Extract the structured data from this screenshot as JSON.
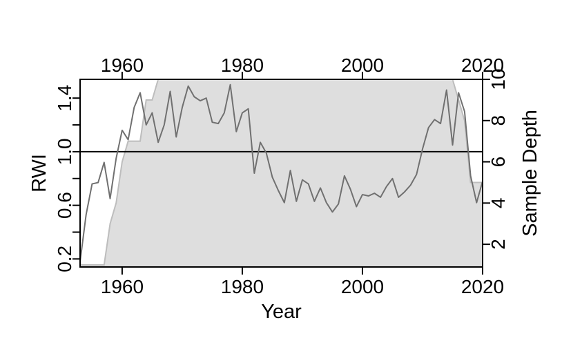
{
  "chart_data": {
    "type": "line",
    "xlabel": "Year",
    "ylabel": "RWI",
    "y2label": "Sample Depth",
    "xlim": [
      1953,
      2020
    ],
    "ylim": [
      0.14,
      1.54
    ],
    "y2lim": [
      0.9,
      10.0
    ],
    "x_ticks": [
      1960,
      1980,
      2000,
      2020
    ],
    "y_ticks": [
      0.2,
      0.6,
      1.0,
      1.4
    ],
    "y_minor_ticks": [
      0.4,
      0.8,
      1.2
    ],
    "y2_ticks": [
      2,
      4,
      6,
      8,
      10
    ],
    "reference_line": 1.0,
    "grid": false,
    "colors": {
      "rwi_line": "#707070",
      "depth_fill": "#dedede",
      "depth_edge": "#bdbdbd",
      "reference": "#000000"
    },
    "series": [
      {
        "role": "rwi",
        "x": [
          1953,
          1954,
          1955,
          1956,
          1957,
          1958,
          1959,
          1960,
          1961,
          1962,
          1963,
          1964,
          1965,
          1966,
          1967,
          1968,
          1969,
          1970,
          1971,
          1972,
          1973,
          1974,
          1975,
          1976,
          1977,
          1978,
          1979,
          1980,
          1981,
          1982,
          1983,
          1984,
          1985,
          1986,
          1987,
          1988,
          1989,
          1990,
          1991,
          1992,
          1993,
          1994,
          1995,
          1996,
          1997,
          1998,
          1999,
          2000,
          2001,
          2002,
          2003,
          2004,
          2005,
          2006,
          2007,
          2008,
          2009,
          2010,
          2011,
          2012,
          2013,
          2014,
          2015,
          2016,
          2017,
          2018,
          2019,
          2020
        ],
        "y": [
          0.18,
          0.53,
          0.76,
          0.77,
          0.92,
          0.65,
          0.95,
          1.16,
          1.09,
          1.33,
          1.44,
          1.2,
          1.29,
          1.07,
          1.2,
          1.45,
          1.11,
          1.33,
          1.49,
          1.41,
          1.38,
          1.4,
          1.22,
          1.21,
          1.29,
          1.5,
          1.15,
          1.29,
          1.32,
          0.84,
          1.07,
          0.99,
          0.81,
          0.71,
          0.62,
          0.86,
          0.63,
          0.79,
          0.76,
          0.63,
          0.73,
          0.62,
          0.55,
          0.61,
          0.82,
          0.72,
          0.59,
          0.68,
          0.67,
          0.69,
          0.66,
          0.74,
          0.8,
          0.66,
          0.7,
          0.75,
          0.83,
          1.02,
          1.18,
          1.24,
          1.21,
          1.46,
          1.05,
          1.44,
          1.3,
          0.82,
          0.62,
          0.78
        ]
      },
      {
        "role": "sample_depth",
        "x": [
          1953,
          1957,
          1958,
          1959,
          1960,
          1961,
          1962,
          1963,
          1964,
          1965,
          1966,
          1967,
          1968,
          2015,
          2016,
          2017,
          2018,
          2019,
          2020
        ],
        "y": [
          1,
          1,
          3,
          4,
          6,
          7,
          7,
          7,
          9,
          9,
          10,
          10,
          10,
          10,
          9,
          8,
          5,
          5,
          5
        ]
      }
    ]
  }
}
